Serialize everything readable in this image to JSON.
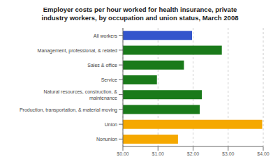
{
  "chart_data": {
    "type": "bar",
    "orientation": "horizontal",
    "title": "Employer costs per hour worked for health insurance, private\nindustry workers, by occupation and union status, March 2008",
    "categories": [
      "All workers",
      "Management, professional, & related",
      "Sales & office",
      "Service",
      "Natural resources, construction, &\nmaintenance",
      "Production, transportation, & material moving",
      "Union",
      "Nonunion"
    ],
    "values": [
      1.97,
      2.82,
      1.74,
      0.97,
      2.25,
      2.19,
      3.97,
      1.57
    ],
    "colors": [
      "#3355cc",
      "#1a7a1a",
      "#1a7a1a",
      "#1a7a1a",
      "#1a7a1a",
      "#1a7a1a",
      "#f5a800",
      "#f5a800"
    ],
    "xlim": [
      0,
      4.0
    ],
    "xticks": [
      {
        "value": 0.0,
        "label": "$0.00"
      },
      {
        "value": 1.0,
        "label": "$1.00"
      },
      {
        "value": 2.0,
        "label": "$2.00"
      },
      {
        "value": 3.0,
        "label": "$3.00"
      },
      {
        "value": 4.0,
        "label": "$4.00"
      }
    ],
    "grid": true
  }
}
